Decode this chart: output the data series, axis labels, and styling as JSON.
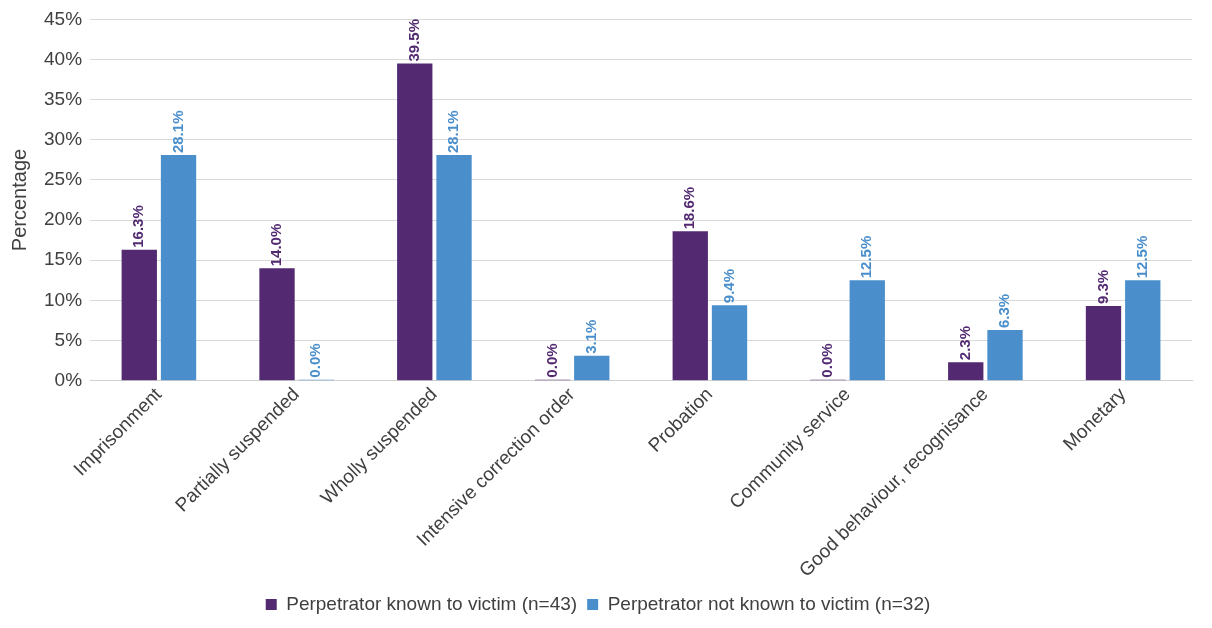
{
  "chart_data": {
    "type": "bar",
    "ylabel": "Percentage",
    "categories": [
      "Imprisonment",
      "Partially suspended",
      "Wholly suspended",
      "Intensive correction order",
      "Probation",
      "Community service",
      "Good behaviour, recognisance",
      "Monetary"
    ],
    "series": [
      {
        "name": "Perpetrator known to victim (n=43)",
        "color": "#532a72",
        "values": [
          16.3,
          14.0,
          39.5,
          0.0,
          18.6,
          0.0,
          2.3,
          9.3
        ],
        "value_labels": [
          "16.3%",
          "14.0%",
          "39.5%",
          "0.0%",
          "18.6%",
          "0.0%",
          "2.3%",
          "9.3%"
        ]
      },
      {
        "name": "Perpetrator not known to victim (n=32)",
        "color": "#4a8fcc",
        "values": [
          28.1,
          0.0,
          28.1,
          3.1,
          9.4,
          12.5,
          6.3,
          12.5
        ],
        "value_labels": [
          "28.1%",
          "0.0%",
          "28.1%",
          "3.1%",
          "9.4%",
          "12.5%",
          "6.3%",
          "12.5%"
        ]
      }
    ],
    "ylim": [
      0,
      45
    ],
    "yticks": [
      {
        "value": 0,
        "label": "0%"
      },
      {
        "value": 5,
        "label": "5%"
      },
      {
        "value": 10,
        "label": "10%"
      },
      {
        "value": 15,
        "label": "15%"
      },
      {
        "value": 20,
        "label": "20%"
      },
      {
        "value": 25,
        "label": "25%"
      },
      {
        "value": 30,
        "label": "30%"
      },
      {
        "value": 35,
        "label": "35%"
      },
      {
        "value": 40,
        "label": "40%"
      },
      {
        "value": 45,
        "label": "45%"
      }
    ],
    "grid": "y",
    "legend": "bottom"
  }
}
